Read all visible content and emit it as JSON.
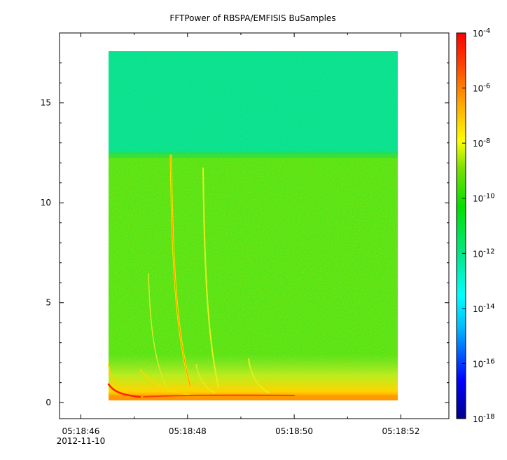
{
  "chart_data": {
    "type": "heatmap",
    "title": "FFTPower of RBSPA/EMFISIS  BuSamples",
    "xlabel": "",
    "ylabel": "",
    "x_axis": {
      "ticks": [
        "05:18:46",
        "05:18:48",
        "05:18:50",
        "05:18:52"
      ],
      "sub_label": "2012-11-10",
      "range_seconds_from_05_18_46": [
        -0.4,
        6.9
      ],
      "data_range_seconds_from_05_18_46": [
        0.6,
        6.2
      ]
    },
    "y_axis": {
      "ticks": [
        "0",
        "5",
        "10",
        "15"
      ],
      "range": [
        -0.8,
        18.5
      ],
      "data_range": [
        0,
        17.5
      ]
    },
    "colorbar": {
      "scale": "log",
      "ticks": [
        "10-4",
        "10-6",
        "10-8",
        "10-10",
        "10-12",
        "10-14",
        "10-16",
        "10-18"
      ],
      "range": [
        1e-18,
        0.0001
      ],
      "colormap": "rainbow",
      "colors": [
        "#00008b",
        "#0000ff",
        "#00bfff",
        "#00ffff",
        "#00e890",
        "#00e000",
        "#7ce000",
        "#ffff00",
        "#ffa500",
        "#ff4000",
        "#ff0000"
      ]
    },
    "background_levels": {
      "above_12_khz": "1e-12",
      "below_12_khz": "1e-10",
      "near_zero": "1e-8"
    }
  }
}
